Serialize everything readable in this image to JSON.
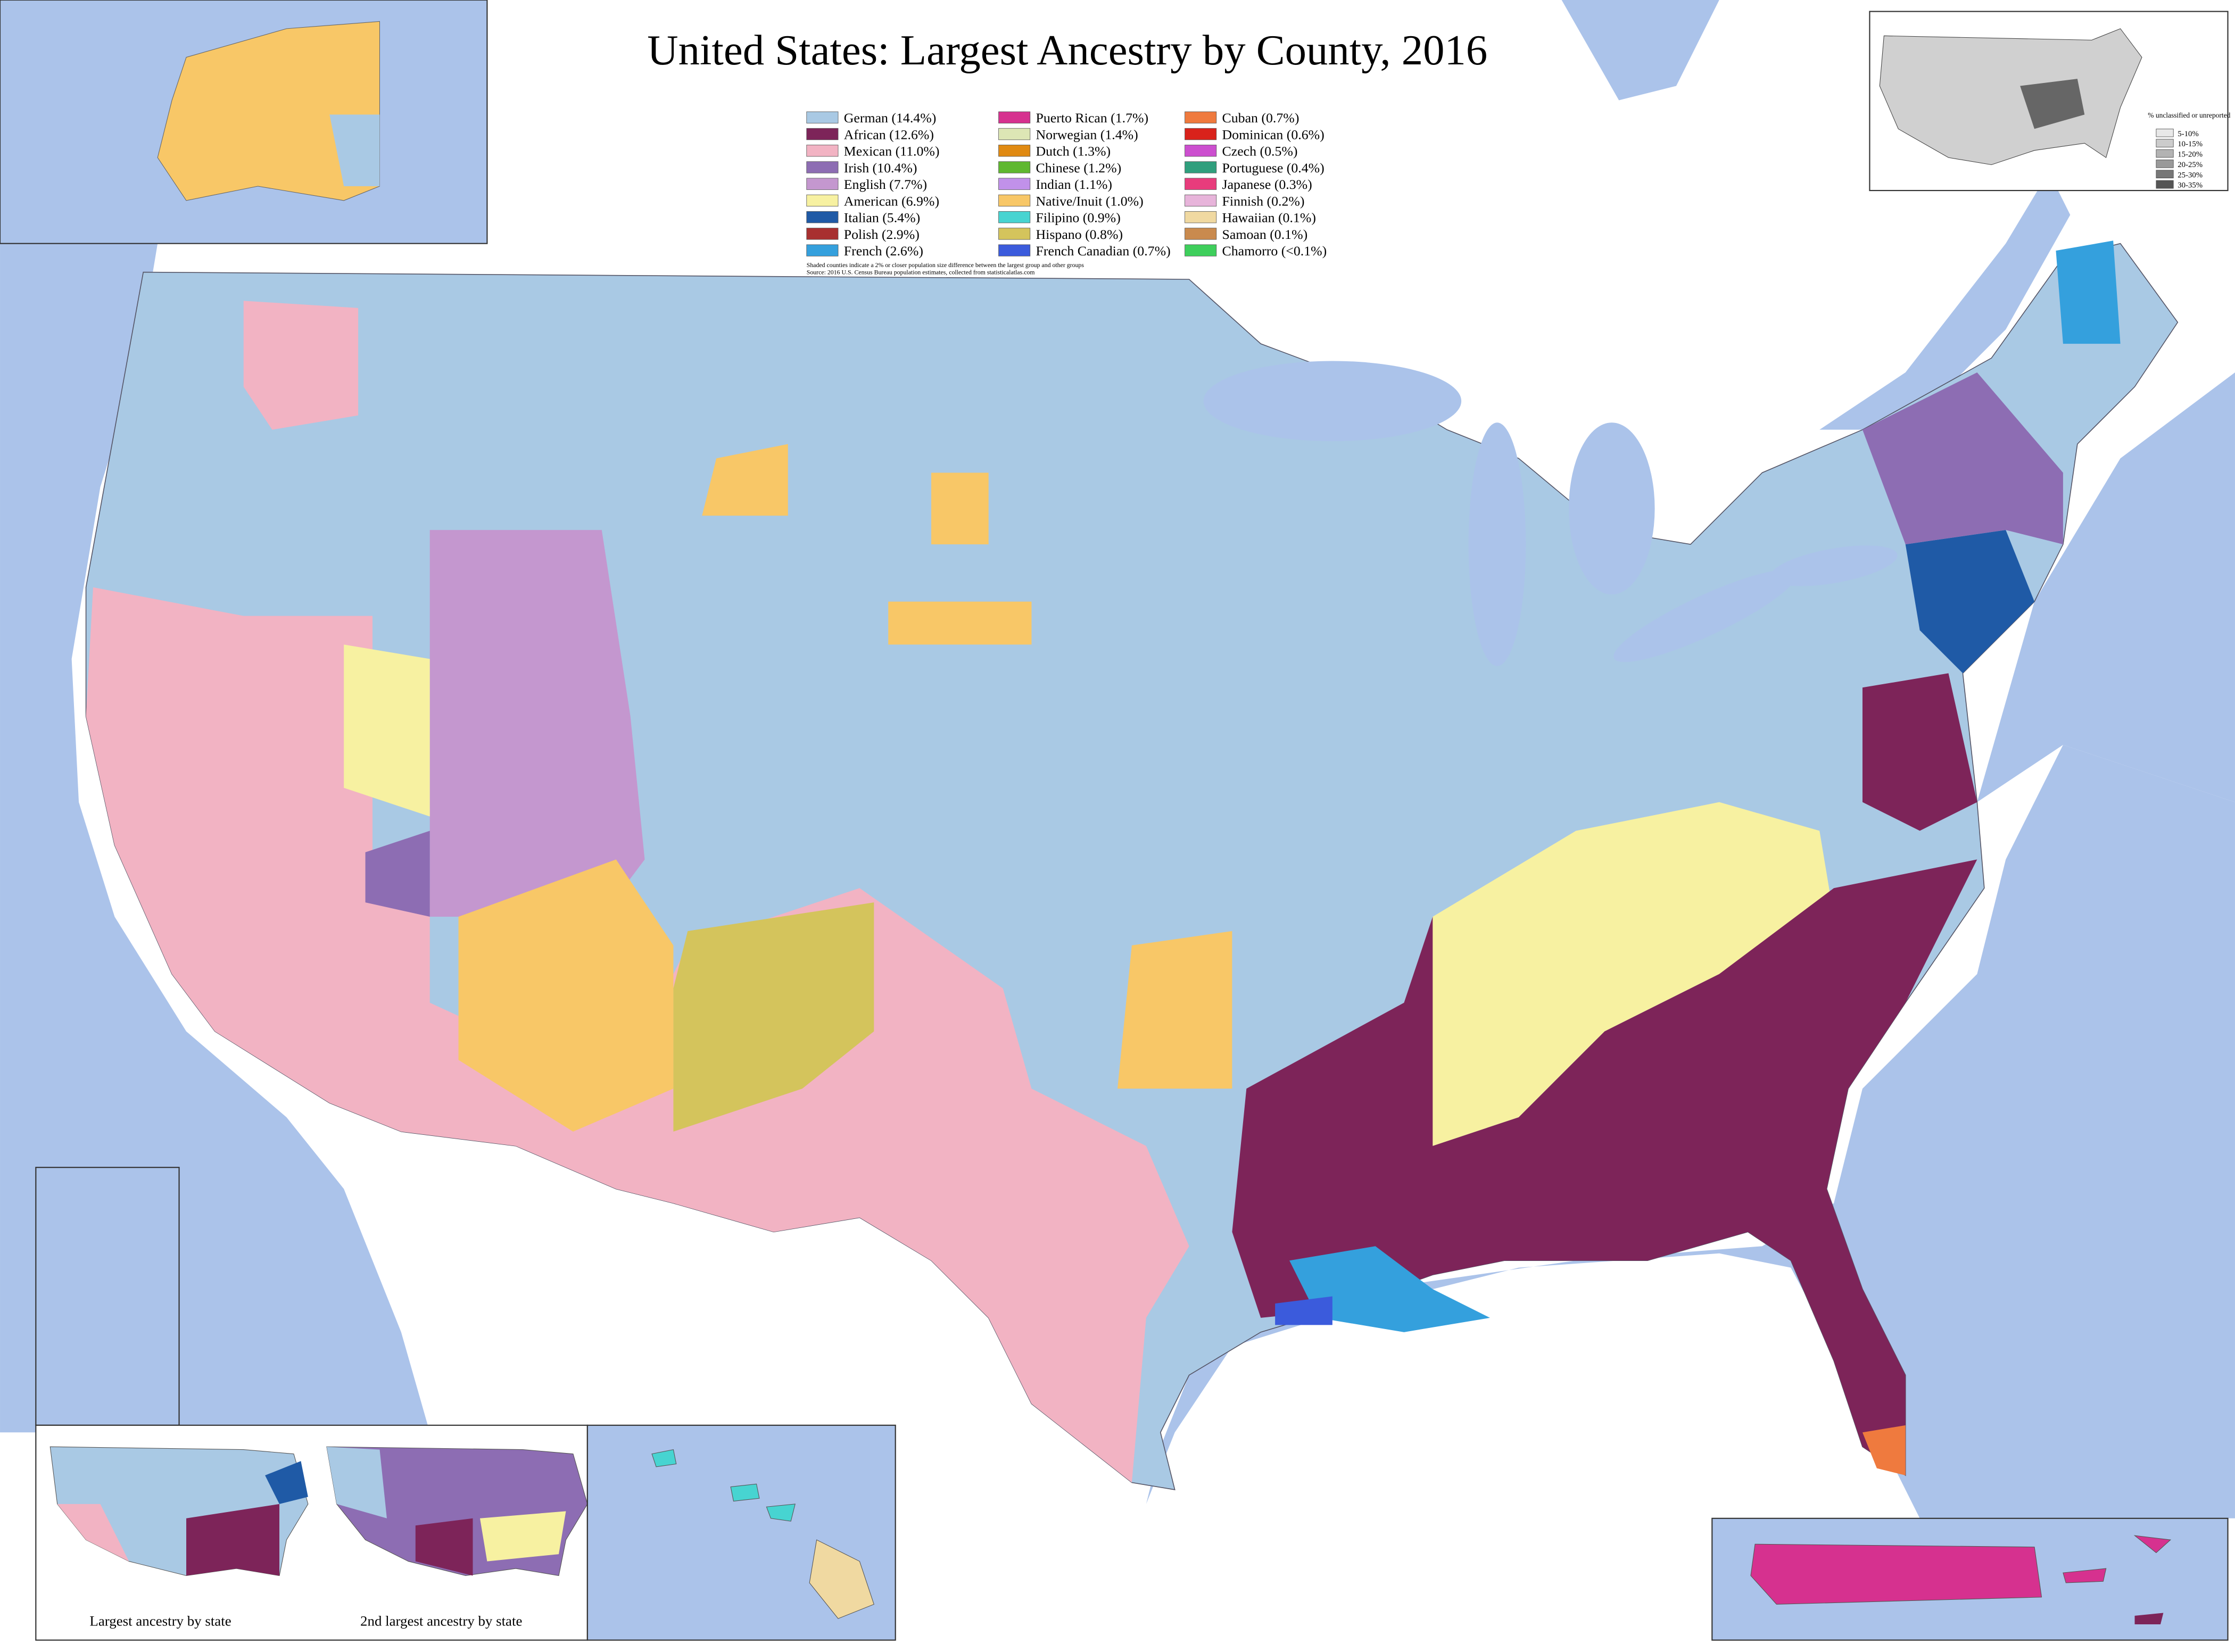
{
  "header": {
    "title": "United States: Largest Ancestry by County, 2016"
  },
  "legend": {
    "items": [
      {
        "label": "German (14.4%)",
        "color": "#a9c9e4"
      },
      {
        "label": "African (12.6%)",
        "color": "#7d2459"
      },
      {
        "label": "Mexican (11.0%)",
        "color": "#f2b3c3"
      },
      {
        "label": "Irish (10.4%)",
        "color": "#8d6db3"
      },
      {
        "label": "English (7.7%)",
        "color": "#c497cf"
      },
      {
        "label": "American (6.9%)",
        "color": "#f7f1a1"
      },
      {
        "label": "Italian (5.4%)",
        "color": "#1f5aa6"
      },
      {
        "label": "Polish (2.9%)",
        "color": "#a83030"
      },
      {
        "label": "French (2.6%)",
        "color": "#34a0dd"
      },
      {
        "label": "Puerto Rican (1.7%)",
        "color": "#d6318f"
      },
      {
        "label": "Norwegian (1.4%)",
        "color": "#dde6b5"
      },
      {
        "label": "Dutch (1.3%)",
        "color": "#e08a12"
      },
      {
        "label": "Chinese (1.2%)",
        "color": "#5fb82f"
      },
      {
        "label": "Indian (1.1%)",
        "color": "#c191ea"
      },
      {
        "label": "Native/Inuit (1.0%)",
        "color": "#f8c767"
      },
      {
        "label": "Filipino (0.9%)",
        "color": "#47d4d1"
      },
      {
        "label": "Hispano (0.8%)",
        "color": "#d4c45c"
      },
      {
        "label": "French Canadian (0.7%)",
        "color": "#3b5bdc"
      },
      {
        "label": "Cuban (0.7%)",
        "color": "#ef7a3e"
      },
      {
        "label": "Dominican (0.6%)",
        "color": "#d9221b"
      },
      {
        "label": "Czech (0.5%)",
        "color": "#cc4fcf"
      },
      {
        "label": "Portuguese (0.4%)",
        "color": "#2f9f7d"
      },
      {
        "label": "Japanese (0.3%)",
        "color": "#e83c7c"
      },
      {
        "label": "Finnish (0.2%)",
        "color": "#e7b4da"
      },
      {
        "label": "Hawaiian (0.1%)",
        "color": "#f0d9a1"
      },
      {
        "label": "Samoan (0.1%)",
        "color": "#c98a4e"
      },
      {
        "label": "Chamorro (<0.1%)",
        "color": "#3ecf5c"
      }
    ],
    "notes": [
      "Shaded counties indicate a 2% or closer population size difference between the largest group and other groups",
      "Source: 2016 U.S. Census Bureau population estimates, collected from statisticalatlas.com"
    ]
  },
  "unclassified_legend": {
    "title": "% unclassified or unreported",
    "items": [
      {
        "label": "5-10%",
        "color": "#e8e8e8"
      },
      {
        "label": "10-15%",
        "color": "#cccccc"
      },
      {
        "label": "15-20%",
        "color": "#b3b3b3"
      },
      {
        "label": "20-25%",
        "color": "#999999"
      },
      {
        "label": "25-30%",
        "color": "#777777"
      },
      {
        "label": "30-35%",
        "color": "#555555"
      }
    ]
  },
  "insets": {
    "state_first": "Largest ancestry by state",
    "state_second": "2nd largest ancestry by state"
  }
}
